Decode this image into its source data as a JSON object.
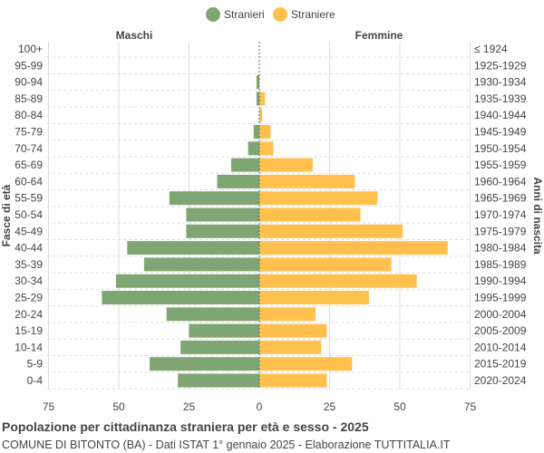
{
  "chart_data": {
    "type": "bar",
    "orientation": "horizontal-pyramid",
    "title": "Popolazione per cittadinanza straniera per età e sesso - 2025",
    "subtitle": "COMUNE DI BITONTO (BA) - Dati ISTAT 1° gennaio 2025 - Elaborazione TUTTITALIA.IT",
    "left_header": "Maschi",
    "right_header": "Femmine",
    "ylabel_left": "Fasce di età",
    "ylabel_right": "Anni di nascita",
    "xlim": [
      -75,
      75
    ],
    "xticks": [
      "75",
      "50",
      "25",
      "0",
      "25",
      "50",
      "75"
    ],
    "grid": true,
    "legend_position": "top",
    "categories": [
      "100+",
      "95-99",
      "90-94",
      "85-89",
      "80-84",
      "75-79",
      "70-74",
      "65-69",
      "60-64",
      "55-59",
      "50-54",
      "45-49",
      "40-44",
      "35-39",
      "30-34",
      "25-29",
      "20-24",
      "15-19",
      "10-14",
      "5-9",
      "0-4"
    ],
    "birth_years": [
      "≤ 1924",
      "1925-1929",
      "1930-1934",
      "1935-1939",
      "1940-1944",
      "1945-1949",
      "1950-1954",
      "1955-1959",
      "1960-1964",
      "1965-1969",
      "1970-1974",
      "1975-1979",
      "1980-1984",
      "1985-1989",
      "1990-1994",
      "1995-1999",
      "2000-2004",
      "2005-2009",
      "2010-2014",
      "2015-2019",
      "2020-2024"
    ],
    "series": [
      {
        "name": "Stranieri",
        "color": "#7fa672",
        "values": [
          0,
          0,
          1,
          1,
          0,
          2,
          4,
          10,
          15,
          32,
          26,
          26,
          47,
          41,
          51,
          56,
          33,
          25,
          28,
          39,
          29
        ]
      },
      {
        "name": "Straniere",
        "color": "#ffc04d",
        "values": [
          0,
          0,
          0,
          2,
          1,
          4,
          5,
          19,
          34,
          42,
          36,
          51,
          67,
          47,
          56,
          39,
          20,
          24,
          22,
          33,
          24
        ]
      }
    ]
  }
}
